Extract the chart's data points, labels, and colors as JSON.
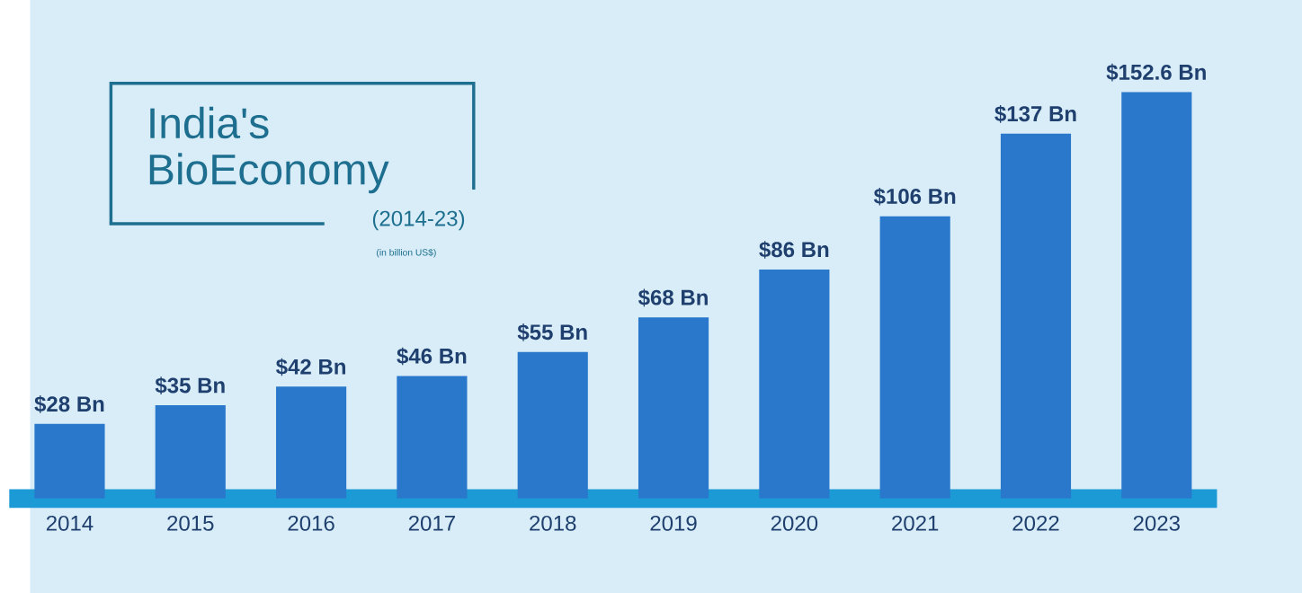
{
  "chart_data": {
    "type": "bar",
    "title": "India's BioEconomy",
    "subtitle": "(2014-23)",
    "annotations": [
      "(in billion US$)"
    ],
    "categories": [
      "2014",
      "2015",
      "2016",
      "2017",
      "2018",
      "2019",
      "2020",
      "2021",
      "2022",
      "2023"
    ],
    "values": [
      28,
      35,
      42,
      46,
      55,
      68,
      86,
      106,
      137,
      152.6
    ],
    "value_labels": [
      "$28 Bn",
      "$35 Bn",
      "$42 Bn",
      "$46 Bn",
      "$55 Bn",
      "$68 Bn",
      "$86 Bn",
      "$106 Bn",
      "$137 Bn",
      "$152.6 Bn"
    ],
    "color": "#2a78cc"
  }
}
